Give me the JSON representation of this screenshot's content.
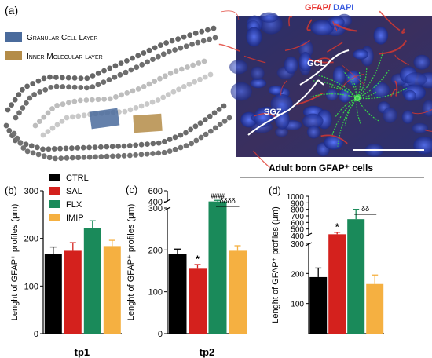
{
  "panel_a": {
    "label": "(a)",
    "legend": [
      {
        "text": "Granular Cell Layer",
        "color": "#4a6b9c"
      },
      {
        "text": "Inner Molecular layer",
        "color": "#b48c48"
      }
    ],
    "micrograph": {
      "stain_gfap": "GFAP/",
      "stain_dapi": " DAPI",
      "gfap_color": "#e8312d",
      "dapi_color": "#3c5ee0",
      "region_gcl": "GCL",
      "region_sgz": "SGZ"
    }
  },
  "legend_bc": {
    "items": [
      {
        "name": "CTRL",
        "color": "#000000"
      },
      {
        "name": "SAL",
        "color": "#d4211d"
      },
      {
        "name": "FLX",
        "color": "#1a8a5a"
      },
      {
        "name": "IMIP",
        "color": "#f5b041"
      }
    ]
  },
  "subtitle_d": "Adult born GFAP⁺ cells",
  "chart_data": [
    {
      "panel": "(b)",
      "type": "bar",
      "categories": [
        "CTRL",
        "SAL",
        "FLX",
        "IMIP"
      ],
      "values": [
        168,
        174,
        222,
        184
      ],
      "errors": [
        14,
        17,
        15,
        12
      ],
      "ylabel": "Lenght of GFAP⁺ profiles (μm)",
      "xlabel": "tp1",
      "ylim": [
        0,
        300
      ],
      "yticks": [
        "0",
        "100",
        "200",
        "300"
      ],
      "annotations": []
    },
    {
      "panel": "(c)",
      "type": "bar",
      "categories": [
        "CTRL",
        "SAL",
        "FLX",
        "IMIP"
      ],
      "values": [
        190,
        155,
        405,
        198
      ],
      "errors": [
        12,
        10,
        20,
        12
      ],
      "ylabel": "Lenght of GFAP⁺ profiles (μm)",
      "xlabel": "tp2",
      "ylim": [
        0,
        600
      ],
      "axis_break": [
        300,
        400
      ],
      "yticks": [
        "0",
        "100",
        "200",
        "300",
        "400",
        "600"
      ],
      "annotations": [
        {
          "text": "*",
          "category": "SAL"
        },
        {
          "text": "####",
          "category": "FLX"
        },
        {
          "text": "δδδδ",
          "between": [
            "FLX",
            "IMIP"
          ]
        }
      ]
    },
    {
      "panel": "(d)",
      "type": "bar",
      "categories": [
        "CTRL",
        "SAL",
        "FLX",
        "IMIP"
      ],
      "values": [
        188,
        420,
        650,
        165
      ],
      "errors": [
        30,
        30,
        150,
        30
      ],
      "ylabel": "Lenght of GFAP⁺ profiles (μm)",
      "xlabel": "",
      "ylim": [
        0,
        1000
      ],
      "axis_break": [
        300,
        400
      ],
      "yticks": [
        "100",
        "200",
        "300",
        "400",
        "500",
        "600",
        "700",
        "800",
        "900",
        "1000"
      ],
      "annotations": [
        {
          "text": "*",
          "category": "SAL"
        },
        {
          "text": "δδ",
          "between": [
            "FLX",
            "IMIP"
          ]
        }
      ]
    }
  ]
}
